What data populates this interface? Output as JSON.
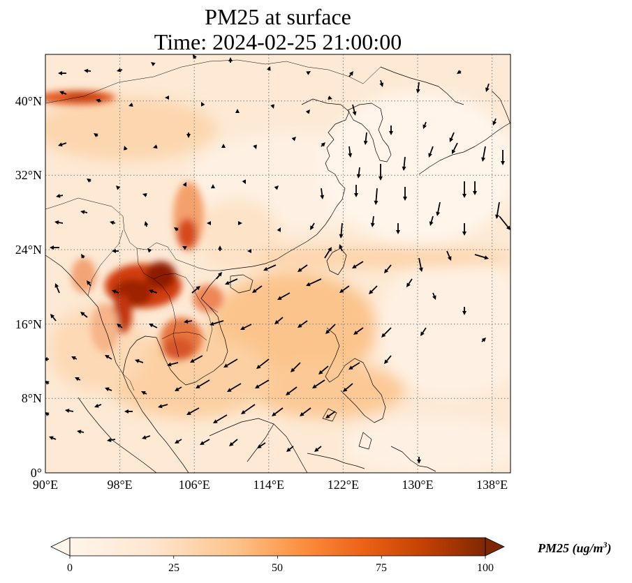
{
  "title": {
    "line1": "PM25 at surface",
    "line2": "Time: 2024-02-25 21:00:00"
  },
  "map": {
    "lon_range": [
      90,
      140
    ],
    "lat_range": [
      0,
      45
    ],
    "lon_ticks": [
      {
        "value": 90,
        "label": "90°E"
      },
      {
        "value": 98,
        "label": "98°E"
      },
      {
        "value": 106,
        "label": "106°E"
      },
      {
        "value": 114,
        "label": "114°E"
      },
      {
        "value": 122,
        "label": "122°E"
      },
      {
        "value": 130,
        "label": "130°E"
      },
      {
        "value": 138,
        "label": "138°E"
      }
    ],
    "lat_ticks": [
      {
        "value": 0,
        "label": "0°"
      },
      {
        "value": 8,
        "label": "8°N"
      },
      {
        "value": 16,
        "label": "16°N"
      },
      {
        "value": 24,
        "label": "24°N"
      },
      {
        "value": 32,
        "label": "32°N"
      },
      {
        "value": 40,
        "label": "40°N"
      }
    ],
    "gridlines": "dotted",
    "field": "PM25",
    "hotspots": [
      {
        "name": "Myanmar-Laos-northern Thailand",
        "lon": 101,
        "lat": 19.5,
        "value": 100
      },
      {
        "name": "Sichuan-Guizhou",
        "lon": 106,
        "lat": 26.5,
        "value": 70
      },
      {
        "name": "Tarim margin",
        "lon": 94,
        "lat": 40.3,
        "value": 65
      },
      {
        "name": "Cambodia",
        "lon": 104.5,
        "lat": 13.5,
        "value": 60
      },
      {
        "name": "Red River delta",
        "lon": 106.5,
        "lat": 20,
        "value": 50
      }
    ],
    "wind": "black quiver arrows"
  },
  "colorbar": {
    "ticks": [
      "0",
      "25",
      "50",
      "75",
      "100"
    ],
    "label_main": "PM25 (ug/m",
    "label_sup": "3",
    "label_end": ")",
    "colormap": [
      "#fff5eb",
      "#fdd9b1",
      "#fda762",
      "#f06913",
      "#c54002",
      "#7f2704"
    ]
  }
}
